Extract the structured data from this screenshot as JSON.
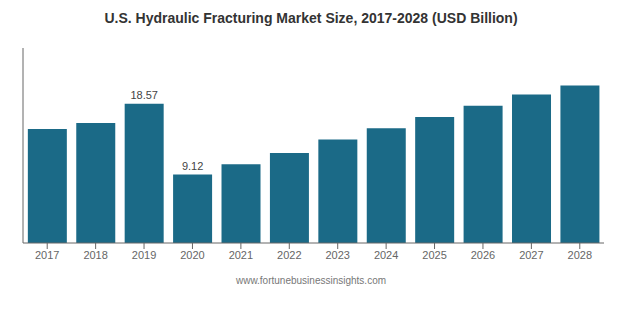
{
  "chart_data": {
    "type": "bar",
    "title": "U.S. Hydraulic Fracturing Market Size, 2017-2028 (USD Billion)",
    "categories": [
      "2017",
      "2018",
      "2019",
      "2020",
      "2021",
      "2022",
      "2023",
      "2024",
      "2025",
      "2026",
      "2027",
      "2028"
    ],
    "values": [
      15.2,
      16.0,
      18.57,
      9.12,
      10.5,
      12.0,
      13.8,
      15.3,
      16.8,
      18.3,
      19.8,
      21.0
    ],
    "color": "#1b6a87",
    "ylim": [
      0,
      26
    ],
    "grid": false,
    "tick_labels": "x",
    "annotations": [
      {
        "x": "2019",
        "y": 18.57,
        "text": "18.57"
      },
      {
        "x": "2020",
        "y": 9.12,
        "text": "9.12"
      },
      {
        "text": "www.fortunebusinessinsights.com"
      }
    ]
  }
}
